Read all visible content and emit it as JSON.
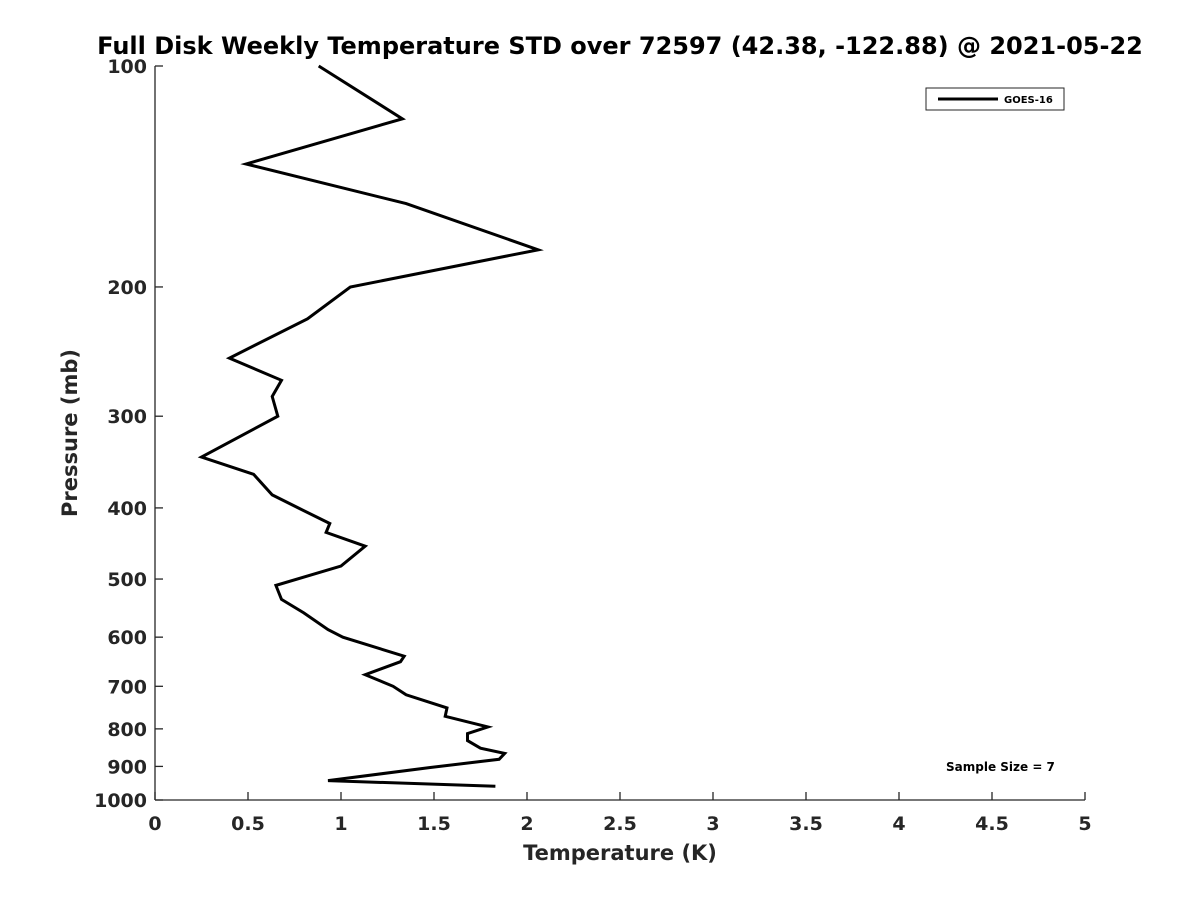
{
  "chart_data": {
    "type": "line",
    "title": "Full Disk Weekly Temperature STD over 72597 (42.38, -122.88) @ 2021-05-22",
    "xlabel": "Temperature (K)",
    "ylabel": "Pressure (mb)",
    "xlim": [
      0,
      5
    ],
    "ylim": [
      1000,
      100
    ],
    "y_scale": "log",
    "y_reversed": true,
    "xticks": [
      0,
      0.5,
      1,
      1.5,
      2,
      2.5,
      3,
      3.5,
      4,
      4.5,
      5
    ],
    "xtick_labels": [
      "0",
      "0.5",
      "1",
      "1.5",
      "2",
      "2.5",
      "3",
      "3.5",
      "4",
      "4.5",
      "5"
    ],
    "yticks": [
      100,
      200,
      300,
      400,
      500,
      600,
      700,
      800,
      900,
      1000
    ],
    "ytick_labels": [
      "100",
      "200",
      "300",
      "400",
      "500",
      "600",
      "700",
      "800",
      "900",
      "1000"
    ],
    "grid": false,
    "legend": {
      "position": "top-right",
      "entries": [
        "GOES-16"
      ]
    },
    "annotation": "Sample Size = 7",
    "series": [
      {
        "name": "GOES-16",
        "color": "#000000",
        "points": [
          [
            0.88,
            100
          ],
          [
            1.33,
            118
          ],
          [
            0.49,
            136
          ],
          [
            1.35,
            154
          ],
          [
            2.06,
            178
          ],
          [
            1.05,
            200
          ],
          [
            0.82,
            221
          ],
          [
            0.4,
            250
          ],
          [
            0.68,
            268
          ],
          [
            0.63,
            282
          ],
          [
            0.66,
            300
          ],
          [
            0.25,
            341
          ],
          [
            0.53,
            360
          ],
          [
            0.63,
            384
          ],
          [
            0.77,
            400
          ],
          [
            0.94,
            420
          ],
          [
            0.92,
            432
          ],
          [
            1.13,
            451
          ],
          [
            1.0,
            480
          ],
          [
            0.65,
            510
          ],
          [
            0.68,
            533
          ],
          [
            0.8,
            556
          ],
          [
            0.93,
            586
          ],
          [
            1.01,
            600
          ],
          [
            1.34,
            637
          ],
          [
            1.32,
            648
          ],
          [
            1.13,
            675
          ],
          [
            1.28,
            700
          ],
          [
            1.35,
            719
          ],
          [
            1.57,
            749
          ],
          [
            1.56,
            769
          ],
          [
            1.79,
            795
          ],
          [
            1.68,
            812
          ],
          [
            1.68,
            830
          ],
          [
            1.75,
            850
          ],
          [
            1.88,
            864
          ],
          [
            1.85,
            880
          ],
          [
            1.48,
            903
          ],
          [
            0.93,
            941
          ],
          [
            1.83,
            958
          ]
        ]
      }
    ]
  }
}
